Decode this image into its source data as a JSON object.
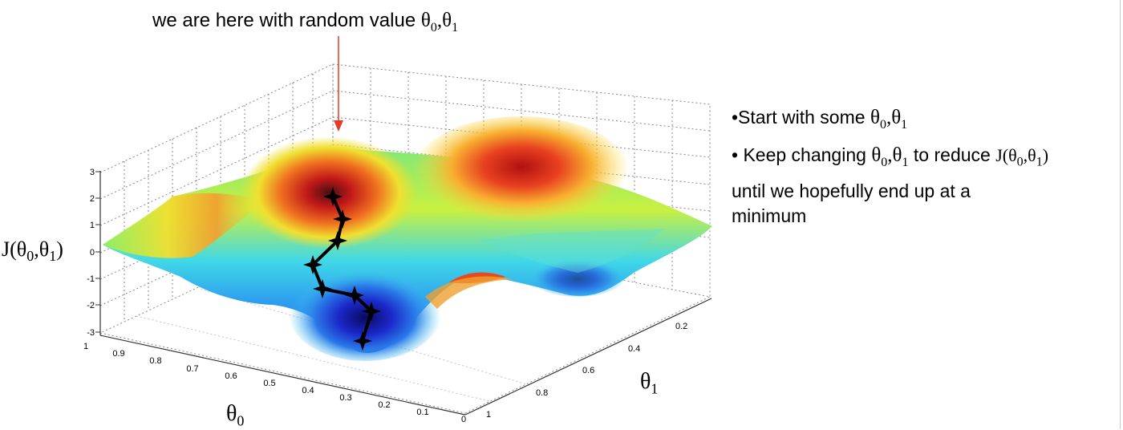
{
  "caption": {
    "text": "we are here with random value",
    "theta_symbol": "θ",
    "sub0": "0",
    "sep": ",",
    "sub1": "1"
  },
  "axes": {
    "z_label_prefix": "J(",
    "z_label_suffix": ")",
    "theta0_label": "θ",
    "theta0_sub": "0",
    "theta1_label": "θ",
    "theta1_sub": "1",
    "z_ticks": [
      "3",
      "2",
      "1",
      "0",
      "-1",
      "-2",
      "-3"
    ],
    "theta0_ticks": [
      "1",
      "0.9",
      "0.8",
      "0.7",
      "0.6",
      "0.5",
      "0.4",
      "0.3",
      "0.2",
      "0.1",
      "0"
    ],
    "theta1_ticks": [
      "0",
      "0.2",
      "0.4",
      "0.6",
      "0.8",
      "1"
    ]
  },
  "notes": {
    "line1_text": "•Start with some",
    "line2_text": "• Keep changing",
    "line2_mid": "to reduce",
    "line3_text": "until we hopefully end up at a",
    "line4_text": "minimum",
    "j_prefix": "J(",
    "j_suffix": ")"
  },
  "colors": {
    "arrow": "#e23b2a",
    "path": "#000000",
    "grid": "#777777"
  }
}
